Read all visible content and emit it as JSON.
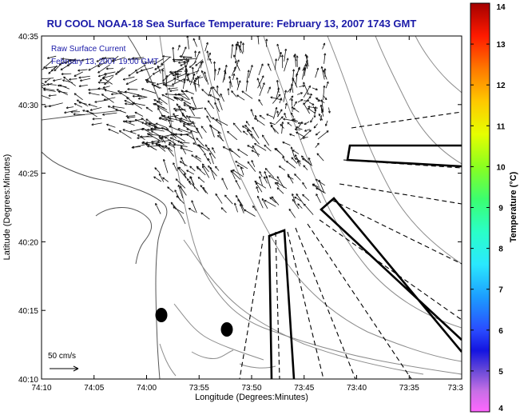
{
  "title": "RU COOL  NOAA-18  Sea Surface Temperature:  February 13, 2007 1743 GMT",
  "overlay": {
    "line1": "Raw Surface Current",
    "line2": "February 13, 2007 19:00 GMT"
  },
  "x_axis": {
    "label": "Longitude (Degrees:Minutes)",
    "ticks": [
      "74:10",
      "74:05",
      "74:00",
      "73:55",
      "73:50",
      "73:45",
      "73:40",
      "73:35",
      "73:3"
    ]
  },
  "y_axis": {
    "label": "Latitude (Degrees:Minutes)",
    "ticks": [
      "40:35",
      "40:30",
      "40:25",
      "40:20",
      "40:15",
      "40:10"
    ]
  },
  "colorbar": {
    "label": "Temperature (°C)",
    "ticks": [
      "14",
      "13",
      "12",
      "11",
      "10",
      "9",
      "8",
      "7",
      "6",
      "5",
      "4"
    ],
    "min": 4,
    "max": 14
  },
  "scale_label": "50 cm/s"
}
